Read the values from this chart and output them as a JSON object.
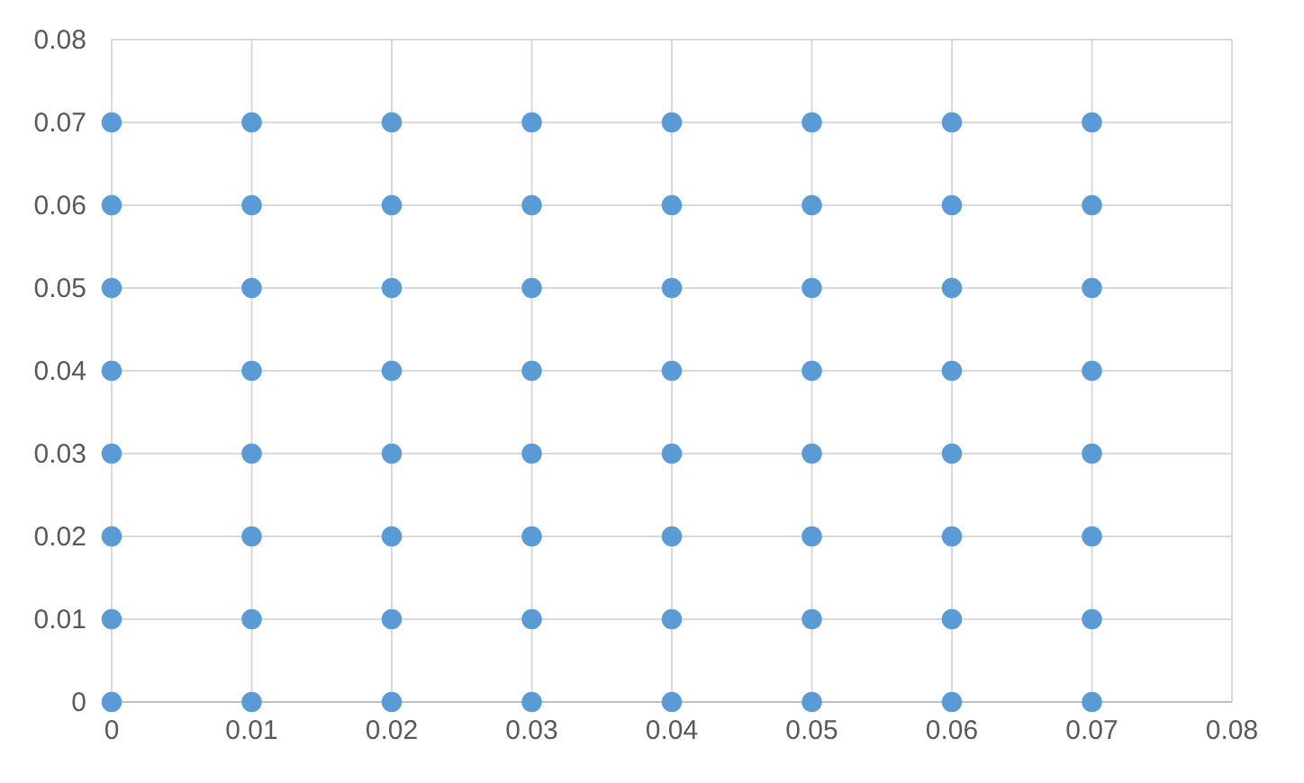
{
  "chart_data": {
    "type": "scatter",
    "marker": "circle",
    "grid": true,
    "xlim": [
      0,
      0.08
    ],
    "ylim": [
      0,
      0.08
    ],
    "xticks": [
      0,
      0.01,
      0.02,
      0.03,
      0.04,
      0.05,
      0.06,
      0.07,
      0.08
    ],
    "yticks": [
      0,
      0.01,
      0.02,
      0.03,
      0.04,
      0.05,
      0.06,
      0.07,
      0.08
    ],
    "series": [
      {
        "color": "#5b9bd5",
        "x": [
          0,
          0,
          0,
          0,
          0,
          0,
          0,
          0,
          0.01,
          0.01,
          0.01,
          0.01,
          0.01,
          0.01,
          0.01,
          0.01,
          0.02,
          0.02,
          0.02,
          0.02,
          0.02,
          0.02,
          0.02,
          0.02,
          0.03,
          0.03,
          0.03,
          0.03,
          0.03,
          0.03,
          0.03,
          0.03,
          0.04,
          0.04,
          0.04,
          0.04,
          0.04,
          0.04,
          0.04,
          0.04,
          0.05,
          0.05,
          0.05,
          0.05,
          0.05,
          0.05,
          0.05,
          0.05,
          0.06,
          0.06,
          0.06,
          0.06,
          0.06,
          0.06,
          0.06,
          0.06,
          0.07,
          0.07,
          0.07,
          0.07,
          0.07,
          0.07,
          0.07,
          0.07
        ],
        "values": [
          0,
          0.01,
          0.02,
          0.03,
          0.04,
          0.05,
          0.06,
          0.07,
          0,
          0.01,
          0.02,
          0.03,
          0.04,
          0.05,
          0.06,
          0.07,
          0,
          0.01,
          0.02,
          0.03,
          0.04,
          0.05,
          0.06,
          0.07,
          0,
          0.01,
          0.02,
          0.03,
          0.04,
          0.05,
          0.06,
          0.07,
          0,
          0.01,
          0.02,
          0.03,
          0.04,
          0.05,
          0.06,
          0.07,
          0,
          0.01,
          0.02,
          0.03,
          0.04,
          0.05,
          0.06,
          0.07,
          0,
          0.01,
          0.02,
          0.03,
          0.04,
          0.05,
          0.06,
          0.07,
          0,
          0.01,
          0.02,
          0.03,
          0.04,
          0.05,
          0.06,
          0.07
        ]
      }
    ]
  }
}
